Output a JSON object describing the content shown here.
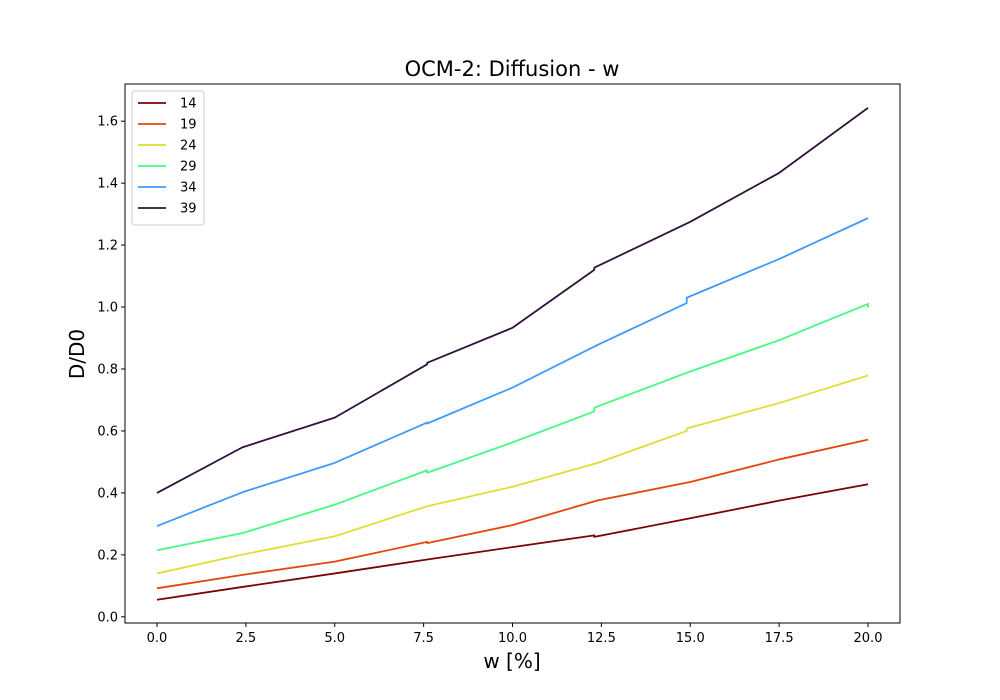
{
  "chart_data": {
    "type": "line",
    "title": "OCM-2: Diffusion - w",
    "xlabel": "w [%]",
    "ylabel": "D/D0",
    "xlim": [
      -0.9,
      20.9
    ],
    "ylim": [
      -0.02,
      1.72
    ],
    "xticks": [
      0.0,
      2.5,
      5.0,
      7.5,
      10.0,
      12.5,
      15.0,
      17.5,
      20.0
    ],
    "xtick_labels": [
      "0.0",
      "2.5",
      "5.0",
      "7.5",
      "10.0",
      "12.5",
      "15.0",
      "17.5",
      "20.0"
    ],
    "yticks": [
      0.0,
      0.2,
      0.4,
      0.6,
      0.8,
      1.0,
      1.2,
      1.4,
      1.6
    ],
    "ytick_labels": [
      "0.0",
      "0.2",
      "0.4",
      "0.6",
      "0.8",
      "1.0",
      "1.2",
      "1.4",
      "1.6"
    ],
    "grid": false,
    "legend_position": "top-left",
    "series": [
      {
        "name": "14",
        "color": "#7a0403",
        "points": [
          [
            0.0,
            0.055
          ],
          [
            2.5,
            0.098
          ],
          [
            5.0,
            0.14
          ],
          [
            7.6,
            0.185
          ],
          [
            10.0,
            0.225
          ],
          [
            12.3,
            0.263
          ],
          [
            12.3,
            0.258
          ],
          [
            15.0,
            0.318
          ],
          [
            17.5,
            0.375
          ],
          [
            20.0,
            0.428
          ]
        ]
      },
      {
        "name": "19",
        "color": "#e4460a",
        "points": [
          [
            0.0,
            0.092
          ],
          [
            2.5,
            0.137
          ],
          [
            5.0,
            0.178
          ],
          [
            7.6,
            0.242
          ],
          [
            7.6,
            0.238
          ],
          [
            10.0,
            0.296
          ],
          [
            12.4,
            0.376
          ],
          [
            15.0,
            0.435
          ],
          [
            17.5,
            0.508
          ],
          [
            20.0,
            0.572
          ]
        ]
      },
      {
        "name": "24",
        "color": "#e1dd37",
        "points": [
          [
            0.0,
            0.14
          ],
          [
            2.5,
            0.203
          ],
          [
            5.0,
            0.26
          ],
          [
            7.6,
            0.357
          ],
          [
            10.0,
            0.42
          ],
          [
            12.4,
            0.497
          ],
          [
            14.9,
            0.6
          ],
          [
            14.9,
            0.608
          ],
          [
            17.5,
            0.69
          ],
          [
            20.0,
            0.779
          ]
        ]
      },
      {
        "name": "29",
        "color": "#46f884",
        "points": [
          [
            0.0,
            0.215
          ],
          [
            2.4,
            0.27
          ],
          [
            5.0,
            0.362
          ],
          [
            7.6,
            0.473
          ],
          [
            7.6,
            0.465
          ],
          [
            10.0,
            0.563
          ],
          [
            12.3,
            0.663
          ],
          [
            12.3,
            0.675
          ],
          [
            15.0,
            0.792
          ],
          [
            17.5,
            0.893
          ],
          [
            20.0,
            1.01
          ],
          [
            20.0,
            0.998
          ]
        ]
      },
      {
        "name": "34",
        "color": "#3e9bfe",
        "points": [
          [
            0.0,
            0.293
          ],
          [
            2.4,
            0.402
          ],
          [
            5.0,
            0.497
          ],
          [
            7.6,
            0.627
          ],
          [
            7.6,
            0.624
          ],
          [
            10.0,
            0.74
          ],
          [
            12.4,
            0.878
          ],
          [
            14.9,
            1.013
          ],
          [
            14.9,
            1.03
          ],
          [
            17.5,
            1.155
          ],
          [
            20.0,
            1.287
          ]
        ]
      },
      {
        "name": "39",
        "color": "#30123b",
        "points": [
          [
            0.0,
            0.4
          ],
          [
            2.4,
            0.547
          ],
          [
            5.0,
            0.643
          ],
          [
            7.6,
            0.815
          ],
          [
            7.6,
            0.82
          ],
          [
            10.0,
            0.933
          ],
          [
            12.3,
            1.12
          ],
          [
            12.3,
            1.127
          ],
          [
            15.0,
            1.275
          ],
          [
            17.5,
            1.433
          ],
          [
            20.0,
            1.643
          ]
        ]
      }
    ]
  }
}
